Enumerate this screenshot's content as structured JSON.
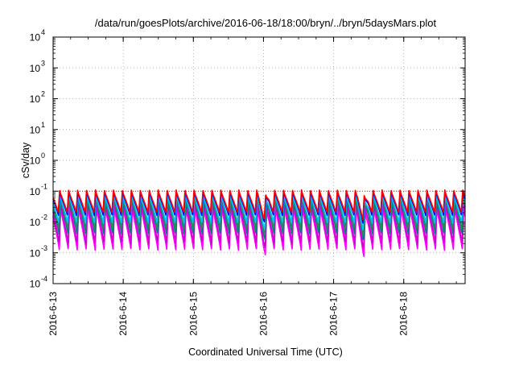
{
  "chart_data": {
    "type": "line",
    "title": "/data/run/goesPlots/archive/2016-06-18/18:00/bryn/../bryn/5daysMars.plot",
    "xlabel": "Coordinated Universal Time (UTC)",
    "ylabel": "cSv/day",
    "yscale": "log",
    "ylim": [
      0.0001,
      10000
    ],
    "xlim": [
      "2016-06-13T00:00",
      "2016-06-18T21:00"
    ],
    "x_tick_labels": [
      "2016-6-13",
      "2016-6-14",
      "2016-6-15",
      "2016-6-16",
      "2016-6-17",
      "2016-6-18"
    ],
    "y_ticks": [
      {
        "base": "10",
        "exp": "-4"
      },
      {
        "base": "10",
        "exp": "-3"
      },
      {
        "base": "10",
        "exp": "-2"
      },
      {
        "base": "10",
        "exp": "-1"
      },
      {
        "base": "10",
        "exp": "0"
      },
      {
        "base": "10",
        "exp": "1"
      },
      {
        "base": "10",
        "exp": "2"
      },
      {
        "base": "10",
        "exp": "3"
      },
      {
        "base": "10",
        "exp": "4"
      }
    ],
    "grid": true,
    "reference_line": {
      "y": 0.1,
      "color": "#ff0000",
      "style": "dotted"
    },
    "pattern": {
      "description_values": "sawtooth orbital modulation, approx 46 cycles over the window",
      "cycles": 46,
      "dips": [
        {
          "at": "2016-06-16T00:00"
        },
        {
          "at": "2016-06-17T10:00"
        }
      ]
    },
    "series": [
      {
        "color": "#ff00ff",
        "peak": 0.03,
        "trough": 0.0012
      },
      {
        "color": "#cc00cc",
        "peak": 0.045,
        "trough": 0.002
      },
      {
        "color": "#008080",
        "peak": 0.06,
        "trough": 0.004
      },
      {
        "color": "#2e8b57",
        "peak": 0.07,
        "trough": 0.006
      },
      {
        "color": "#00bfff",
        "peak": 0.08,
        "trough": 0.009
      },
      {
        "color": "#0000ff",
        "peak": 0.1,
        "trough": 0.016
      },
      {
        "color": "#ff0000",
        "peak": 0.11,
        "trough": 0.02
      }
    ]
  }
}
